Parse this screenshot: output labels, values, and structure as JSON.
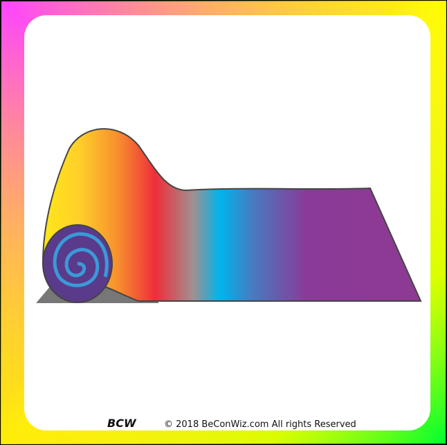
{
  "footer": {
    "logo": "BCW",
    "copyright": "© 2018 BeConWiz.com All rights Reserved"
  }
}
